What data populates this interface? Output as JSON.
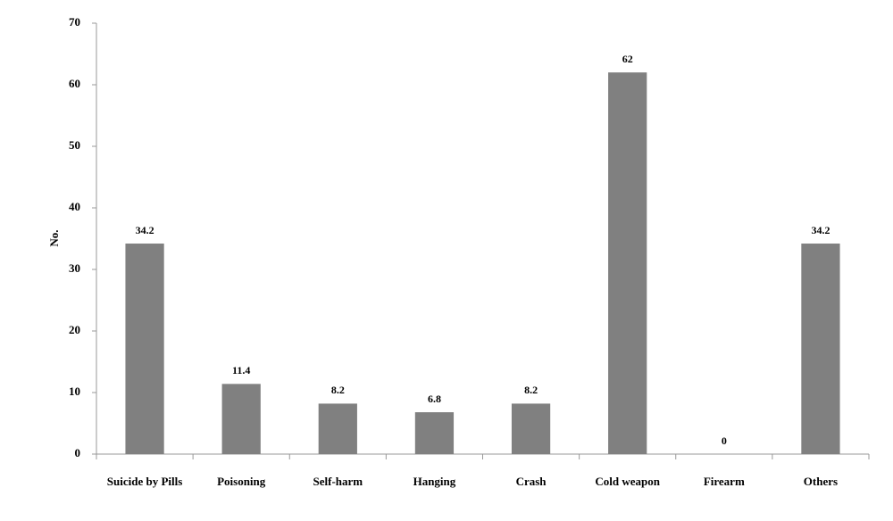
{
  "chart_data": {
    "type": "bar",
    "ylabel": "No.",
    "categories": [
      "Suicide by Pills",
      "Poisoning",
      "Self-harm",
      "Hanging",
      "Crash",
      "Cold weapon",
      "Firearm",
      "Others"
    ],
    "values": [
      34.2,
      11.4,
      8.2,
      6.8,
      8.2,
      62,
      0,
      34.2
    ],
    "color": "#808080",
    "ylim": [
      0,
      70
    ],
    "yticks": [
      0,
      10,
      20,
      30,
      40,
      50,
      60,
      70
    ],
    "grid": false
  }
}
